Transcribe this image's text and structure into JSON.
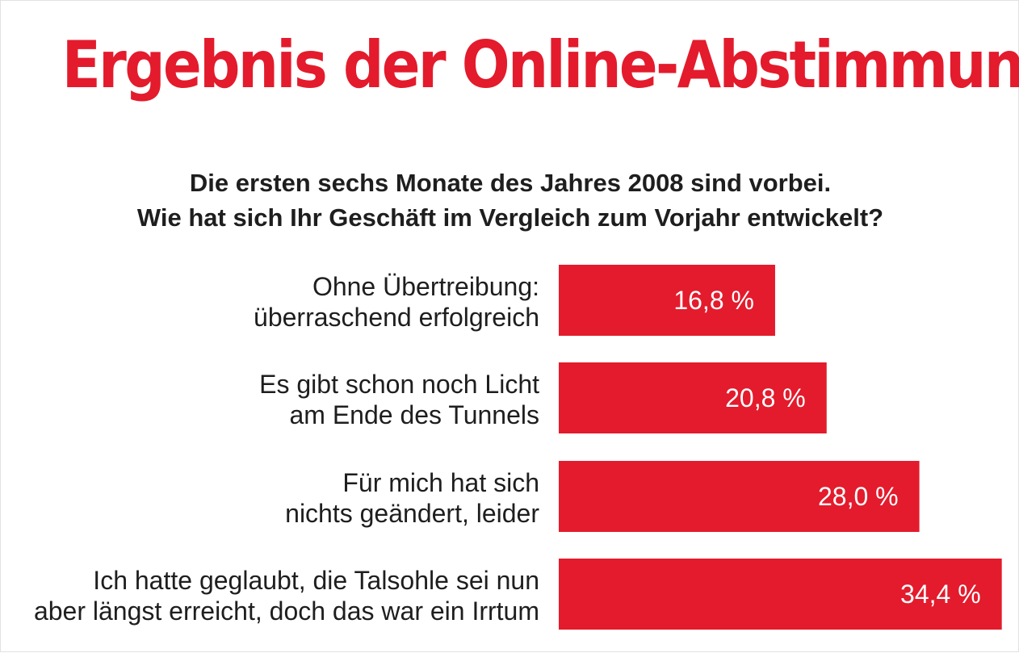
{
  "chart_data": {
    "type": "bar",
    "orientation": "horizontal",
    "title": "Ergebnis der Online-Abstimmung",
    "subtitle": [
      "Die ersten sechs Monate des Jahres 2008 sind vorbei.",
      "Wie hat sich Ihr Geschäft im Vergleich zum Vorjahr entwickelt?"
    ],
    "categories": [
      [
        "Ohne Übertreibung:",
        "überraschend erfolgreich"
      ],
      [
        "Es gibt schon noch Licht",
        "am Ende des Tunnels"
      ],
      [
        "Für mich hat sich",
        "nichts geändert, leider"
      ],
      [
        "Ich hatte geglaubt, die Talsohle sei nun",
        "aber längst erreicht, doch das war ein Irrtum"
      ]
    ],
    "values": [
      16.8,
      20.8,
      28.0,
      34.4
    ],
    "value_labels": [
      "16,8 %",
      "20,8 %",
      "28,0 %",
      "34,4 %"
    ],
    "unit": "%",
    "bar_color": "#e31b2c",
    "title_color": "#e31b2c",
    "text_color": "#1e1e1e",
    "grid": false,
    "legend": "none"
  }
}
